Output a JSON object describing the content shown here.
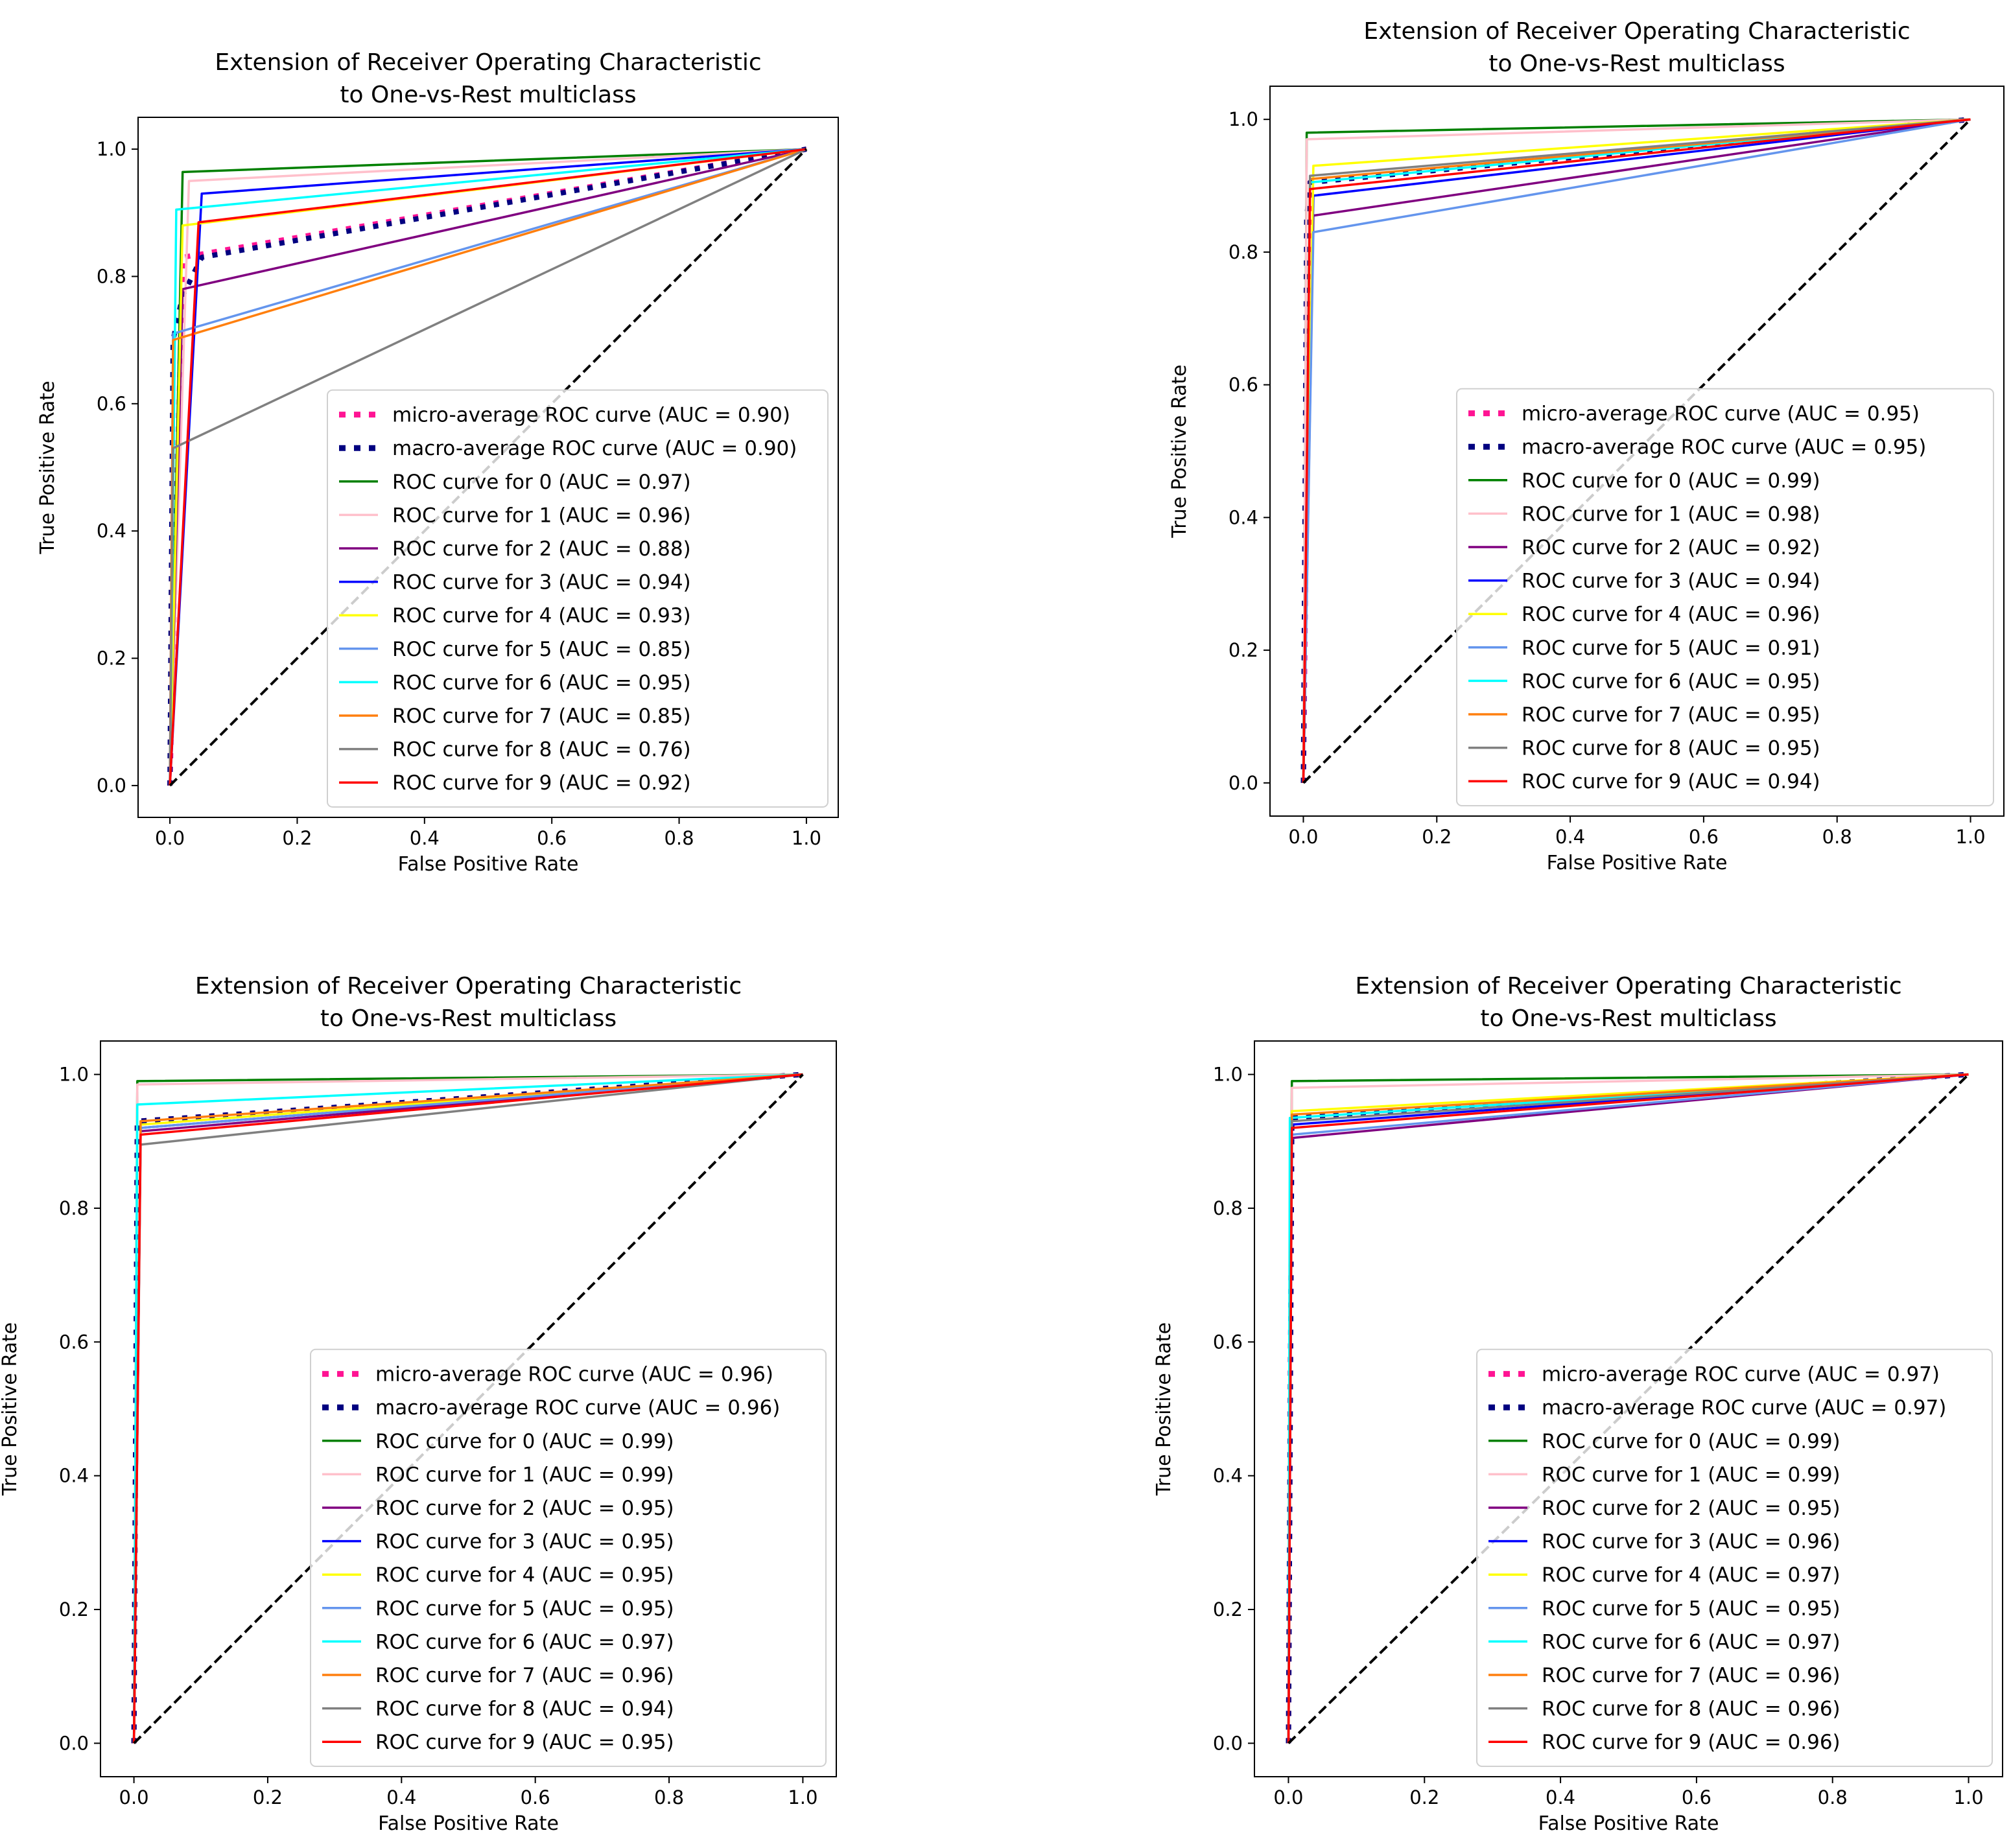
{
  "figure": {
    "background": "#ffffff"
  },
  "chart_data": [
    {
      "type": "line",
      "title": [
        "Extension of Receiver Operating Characteristic",
        "to One-vs-Rest multiclass"
      ],
      "xlabel": "False Positive Rate",
      "ylabel": "True Positive Rate",
      "xlim": [
        -0.05,
        1.05
      ],
      "ylim": [
        -0.05,
        1.05
      ],
      "xticks": [
        0.0,
        0.2,
        0.4,
        0.6,
        0.8,
        1.0
      ],
      "yticks": [
        0.0,
        0.2,
        0.4,
        0.6,
        0.8,
        1.0
      ],
      "xtick_labels": [
        "0.0",
        "0.2",
        "0.4",
        "0.6",
        "0.8",
        "1.0"
      ],
      "ytick_labels": [
        "0.0",
        "0.2",
        "0.4",
        "0.6",
        "0.8",
        "1.0"
      ],
      "legend_position": "lower right",
      "series": [
        {
          "name": "micro-average ROC curve (AUC = 0.90)",
          "color": "#ff1493",
          "style": "dotted",
          "x": [
            0,
            0.02,
            1
          ],
          "y": [
            0,
            0.83,
            1
          ]
        },
        {
          "name": "macro-average ROC curve (AUC = 0.90)",
          "color": "#000080",
          "style": "dotted",
          "x": [
            0,
            0.005,
            0.02,
            0.05,
            1
          ],
          "y": [
            0,
            0.7,
            0.77,
            0.83,
            1
          ]
        },
        {
          "name": "ROC curve for 0 (AUC = 0.97)",
          "color": "#008000",
          "style": "solid",
          "x": [
            0,
            0.02,
            1
          ],
          "y": [
            0,
            0.964,
            1
          ]
        },
        {
          "name": "ROC curve for 1 (AUC = 0.96)",
          "color": "#ffc0cb",
          "style": "solid",
          "x": [
            0,
            0.03,
            1
          ],
          "y": [
            0,
            0.95,
            1
          ]
        },
        {
          "name": "ROC curve for 2 (AUC = 0.88)",
          "color": "#800080",
          "style": "solid",
          "x": [
            0,
            0.02,
            1
          ],
          "y": [
            0,
            0.78,
            1
          ]
        },
        {
          "name": "ROC curve for 3 (AUC = 0.94)",
          "color": "#0000ff",
          "style": "solid",
          "x": [
            0,
            0.05,
            1
          ],
          "y": [
            0,
            0.93,
            1
          ]
        },
        {
          "name": "ROC curve for 4 (AUC = 0.93)",
          "color": "#ffff00",
          "style": "solid",
          "x": [
            0,
            0.02,
            1
          ],
          "y": [
            0,
            0.88,
            1
          ]
        },
        {
          "name": "ROC curve for 5 (AUC = 0.85)",
          "color": "#6495ed",
          "style": "solid",
          "x": [
            0,
            0.005,
            1
          ],
          "y": [
            0,
            0.71,
            1
          ]
        },
        {
          "name": "ROC curve for 6 (AUC = 0.95)",
          "color": "#00ffff",
          "style": "solid",
          "x": [
            0,
            0.01,
            1
          ],
          "y": [
            0,
            0.905,
            1
          ]
        },
        {
          "name": "ROC curve for 7 (AUC = 0.85)",
          "color": "#ff7f0e",
          "style": "solid",
          "x": [
            0,
            0.005,
            1
          ],
          "y": [
            0,
            0.7,
            1
          ]
        },
        {
          "name": "ROC curve for 8 (AUC = 0.76)",
          "color": "#808080",
          "style": "solid",
          "x": [
            0,
            0.005,
            1
          ],
          "y": [
            0,
            0.53,
            1
          ]
        },
        {
          "name": "ROC curve for 9 (AUC = 0.92)",
          "color": "#ff0000",
          "style": "solid",
          "x": [
            0,
            0.045,
            1
          ],
          "y": [
            0,
            0.885,
            1
          ]
        },
        {
          "name": "",
          "color": "#000000",
          "style": "dashed",
          "x": [
            0,
            1
          ],
          "y": [
            0,
            1
          ]
        }
      ]
    },
    {
      "type": "line",
      "title": [
        "Extension of Receiver Operating Characteristic",
        "to One-vs-Rest multiclass"
      ],
      "xlabel": "False Positive Rate",
      "ylabel": "True Positive Rate",
      "xlim": [
        -0.05,
        1.05
      ],
      "ylim": [
        -0.05,
        1.05
      ],
      "xticks": [
        0.0,
        0.2,
        0.4,
        0.6,
        0.8,
        1.0
      ],
      "yticks": [
        0.0,
        0.2,
        0.4,
        0.6,
        0.8,
        1.0
      ],
      "xtick_labels": [
        "0.0",
        "0.2",
        "0.4",
        "0.6",
        "0.8",
        "1.0"
      ],
      "ytick_labels": [
        "0.0",
        "0.2",
        "0.4",
        "0.6",
        "0.8",
        "1.0"
      ],
      "legend_position": "lower right",
      "series": [
        {
          "name": "micro-average ROC curve (AUC = 0.95)",
          "color": "#ff1493",
          "style": "dotted",
          "x": [
            0,
            0.01,
            1
          ],
          "y": [
            0,
            0.905,
            1
          ]
        },
        {
          "name": "macro-average ROC curve (AUC = 0.95)",
          "color": "#000080",
          "style": "dotted",
          "x": [
            0,
            0.005,
            0.01,
            1
          ],
          "y": [
            0,
            0.85,
            0.905,
            1
          ]
        },
        {
          "name": "ROC curve for 0 (AUC = 0.99)",
          "color": "#008000",
          "style": "solid",
          "x": [
            0,
            0.005,
            1
          ],
          "y": [
            0,
            0.98,
            1
          ]
        },
        {
          "name": "ROC curve for 1 (AUC = 0.98)",
          "color": "#ffc0cb",
          "style": "solid",
          "x": [
            0,
            0.005,
            1
          ],
          "y": [
            0,
            0.97,
            1
          ]
        },
        {
          "name": "ROC curve for 2 (AUC = 0.92)",
          "color": "#800080",
          "style": "solid",
          "x": [
            0,
            0.015,
            1
          ],
          "y": [
            0,
            0.855,
            1
          ]
        },
        {
          "name": "ROC curve for 3 (AUC = 0.94)",
          "color": "#0000ff",
          "style": "solid",
          "x": [
            0,
            0.015,
            1
          ],
          "y": [
            0,
            0.885,
            1
          ]
        },
        {
          "name": "ROC curve for 4 (AUC = 0.96)",
          "color": "#ffff00",
          "style": "solid",
          "x": [
            0,
            0.015,
            1
          ],
          "y": [
            0,
            0.93,
            1
          ]
        },
        {
          "name": "ROC curve for 5 (AUC = 0.91)",
          "color": "#6495ed",
          "style": "solid",
          "x": [
            0,
            0.015,
            1
          ],
          "y": [
            0,
            0.83,
            1
          ]
        },
        {
          "name": "ROC curve for 6 (AUC = 0.95)",
          "color": "#00ffff",
          "style": "solid",
          "x": [
            0,
            0.01,
            1
          ],
          "y": [
            0,
            0.905,
            1
          ]
        },
        {
          "name": "ROC curve for 7 (AUC = 0.95)",
          "color": "#ff7f0e",
          "style": "solid",
          "x": [
            0,
            0.01,
            1
          ],
          "y": [
            0,
            0.91,
            1
          ]
        },
        {
          "name": "ROC curve for 8 (AUC = 0.95)",
          "color": "#808080",
          "style": "solid",
          "x": [
            0,
            0.01,
            1
          ],
          "y": [
            0,
            0.915,
            1
          ]
        },
        {
          "name": "ROC curve for 9 (AUC = 0.94)",
          "color": "#ff0000",
          "style": "solid",
          "x": [
            0,
            0.01,
            1
          ],
          "y": [
            0,
            0.895,
            1
          ]
        },
        {
          "name": "",
          "color": "#000000",
          "style": "dashed",
          "x": [
            0,
            1
          ],
          "y": [
            0,
            1
          ]
        }
      ]
    },
    {
      "type": "line",
      "title": [
        "Extension of Receiver Operating Characteristic",
        "to One-vs-Rest multiclass"
      ],
      "xlabel": "False Positive Rate",
      "ylabel": "True Positive Rate",
      "xlim": [
        -0.05,
        1.05
      ],
      "ylim": [
        -0.05,
        1.05
      ],
      "xticks": [
        0.0,
        0.2,
        0.4,
        0.6,
        0.8,
        1.0
      ],
      "yticks": [
        0.0,
        0.2,
        0.4,
        0.6,
        0.8,
        1.0
      ],
      "xtick_labels": [
        "0.0",
        "0.2",
        "0.4",
        "0.6",
        "0.8",
        "1.0"
      ],
      "ytick_labels": [
        "0.0",
        "0.2",
        "0.4",
        "0.6",
        "0.8",
        "1.0"
      ],
      "legend_position": "lower right",
      "series": [
        {
          "name": "micro-average ROC curve (AUC = 0.96)",
          "color": "#ff1493",
          "style": "dotted",
          "x": [
            0,
            0.005,
            1
          ],
          "y": [
            0,
            0.93,
            1
          ]
        },
        {
          "name": "macro-average ROC curve (AUC = 0.96)",
          "color": "#000080",
          "style": "dotted",
          "x": [
            0,
            0.005,
            1
          ],
          "y": [
            0,
            0.93,
            1
          ]
        },
        {
          "name": "ROC curve for 0 (AUC = 0.99)",
          "color": "#008000",
          "style": "solid",
          "x": [
            0,
            0.005,
            1
          ],
          "y": [
            0,
            0.99,
            1
          ]
        },
        {
          "name": "ROC curve for 1 (AUC = 0.99)",
          "color": "#ffc0cb",
          "style": "solid",
          "x": [
            0,
            0.005,
            1
          ],
          "y": [
            0,
            0.985,
            1
          ]
        },
        {
          "name": "ROC curve for 2 (AUC = 0.95)",
          "color": "#800080",
          "style": "solid",
          "x": [
            0,
            0.01,
            1
          ],
          "y": [
            0,
            0.915,
            1
          ]
        },
        {
          "name": "ROC curve for 3 (AUC = 0.95)",
          "color": "#0000ff",
          "style": "solid",
          "x": [
            0,
            0.01,
            1
          ],
          "y": [
            0,
            0.92,
            1
          ]
        },
        {
          "name": "ROC curve for 4 (AUC = 0.95)",
          "color": "#ffff00",
          "style": "solid",
          "x": [
            0,
            0.01,
            1
          ],
          "y": [
            0,
            0.925,
            1
          ]
        },
        {
          "name": "ROC curve for 5 (AUC = 0.95)",
          "color": "#6495ed",
          "style": "solid",
          "x": [
            0,
            0.01,
            1
          ],
          "y": [
            0,
            0.92,
            1
          ]
        },
        {
          "name": "ROC curve for 6 (AUC = 0.97)",
          "color": "#00ffff",
          "style": "solid",
          "x": [
            0,
            0.005,
            1
          ],
          "y": [
            0,
            0.955,
            1
          ]
        },
        {
          "name": "ROC curve for 7 (AUC = 0.96)",
          "color": "#ff7f0e",
          "style": "solid",
          "x": [
            0,
            0.01,
            1
          ],
          "y": [
            0,
            0.93,
            1
          ]
        },
        {
          "name": "ROC curve for 8 (AUC = 0.94)",
          "color": "#808080",
          "style": "solid",
          "x": [
            0,
            0.01,
            1
          ],
          "y": [
            0,
            0.895,
            1
          ]
        },
        {
          "name": "ROC curve for 9 (AUC = 0.95)",
          "color": "#ff0000",
          "style": "solid",
          "x": [
            0,
            0.01,
            1
          ],
          "y": [
            0,
            0.91,
            1
          ]
        },
        {
          "name": "",
          "color": "#000000",
          "style": "dashed",
          "x": [
            0,
            1
          ],
          "y": [
            0,
            1
          ]
        }
      ]
    },
    {
      "type": "line",
      "title": [
        "Extension of Receiver Operating Characteristic",
        "to One-vs-Rest multiclass"
      ],
      "xlabel": "False Positive Rate",
      "ylabel": "True Positive Rate",
      "xlim": [
        -0.05,
        1.05
      ],
      "ylim": [
        -0.05,
        1.05
      ],
      "xticks": [
        0.0,
        0.2,
        0.4,
        0.6,
        0.8,
        1.0
      ],
      "yticks": [
        0.0,
        0.2,
        0.4,
        0.6,
        0.8,
        1.0
      ],
      "xtick_labels": [
        "0.0",
        "0.2",
        "0.4",
        "0.6",
        "0.8",
        "1.0"
      ],
      "ytick_labels": [
        "0.0",
        "0.2",
        "0.4",
        "0.6",
        "0.8",
        "1.0"
      ],
      "legend_position": "lower right",
      "series": [
        {
          "name": "micro-average ROC curve (AUC = 0.97)",
          "color": "#ff1493",
          "style": "dotted",
          "x": [
            0,
            0.005,
            1
          ],
          "y": [
            0,
            0.935,
            1
          ]
        },
        {
          "name": "macro-average ROC curve (AUC = 0.97)",
          "color": "#000080",
          "style": "dotted",
          "x": [
            0,
            0.005,
            1
          ],
          "y": [
            0,
            0.935,
            1
          ]
        },
        {
          "name": "ROC curve for 0 (AUC = 0.99)",
          "color": "#008000",
          "style": "solid",
          "x": [
            0,
            0.005,
            1
          ],
          "y": [
            0,
            0.99,
            1
          ]
        },
        {
          "name": "ROC curve for 1 (AUC = 0.99)",
          "color": "#ffc0cb",
          "style": "solid",
          "x": [
            0,
            0.005,
            1
          ],
          "y": [
            0,
            0.98,
            1
          ]
        },
        {
          "name": "ROC curve for 2 (AUC = 0.95)",
          "color": "#800080",
          "style": "solid",
          "x": [
            0,
            0.005,
            1
          ],
          "y": [
            0,
            0.905,
            1
          ]
        },
        {
          "name": "ROC curve for 3 (AUC = 0.96)",
          "color": "#0000ff",
          "style": "solid",
          "x": [
            0,
            0.005,
            1
          ],
          "y": [
            0,
            0.925,
            1
          ]
        },
        {
          "name": "ROC curve for 4 (AUC = 0.97)",
          "color": "#ffff00",
          "style": "solid",
          "x": [
            0,
            0.005,
            1
          ],
          "y": [
            0,
            0.945,
            1
          ]
        },
        {
          "name": "ROC curve for 5 (AUC = 0.95)",
          "color": "#6495ed",
          "style": "solid",
          "x": [
            0,
            0.005,
            1
          ],
          "y": [
            0,
            0.91,
            1
          ]
        },
        {
          "name": "ROC curve for 6 (AUC = 0.97)",
          "color": "#00ffff",
          "style": "solid",
          "x": [
            0,
            0.002,
            1
          ],
          "y": [
            0,
            0.935,
            1
          ]
        },
        {
          "name": "ROC curve for 7 (AUC = 0.96)",
          "color": "#ff7f0e",
          "style": "solid",
          "x": [
            0,
            0.005,
            1
          ],
          "y": [
            0,
            0.94,
            1
          ]
        },
        {
          "name": "ROC curve for 8 (AUC = 0.96)",
          "color": "#808080",
          "style": "solid",
          "x": [
            0,
            0.005,
            1
          ],
          "y": [
            0,
            0.93,
            1
          ]
        },
        {
          "name": "ROC curve for 9 (AUC = 0.96)",
          "color": "#ff0000",
          "style": "solid",
          "x": [
            0,
            0.005,
            1
          ],
          "y": [
            0,
            0.92,
            1
          ]
        },
        {
          "name": "",
          "color": "#000000",
          "style": "dashed",
          "x": [
            0,
            1
          ],
          "y": [
            0,
            1
          ]
        }
      ]
    }
  ]
}
